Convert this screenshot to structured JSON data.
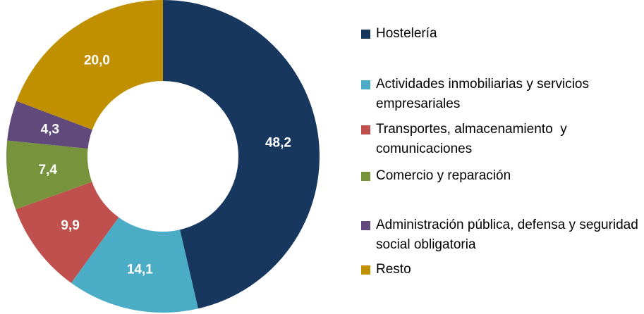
{
  "chart_data": {
    "type": "donut",
    "categories": [
      "Hostelería",
      "Actividades inmobiliarias y servicios empresariales",
      "Transportes, almacenamiento  y comunicaciones",
      "Comercio y reparación",
      "Administración pública, defensa y seguridad social obligatoria",
      "Resto"
    ],
    "values": [
      48.2,
      14.1,
      9.9,
      7.4,
      4.3,
      20.0
    ],
    "value_labels": [
      "48,2",
      "14,1",
      "9,9",
      "7,4",
      "4,3",
      "20,0"
    ],
    "colors": [
      "#17375e",
      "#4bacc6",
      "#c0504d",
      "#77933c",
      "#604a7b",
      "#c09000"
    ],
    "legend": "right"
  }
}
